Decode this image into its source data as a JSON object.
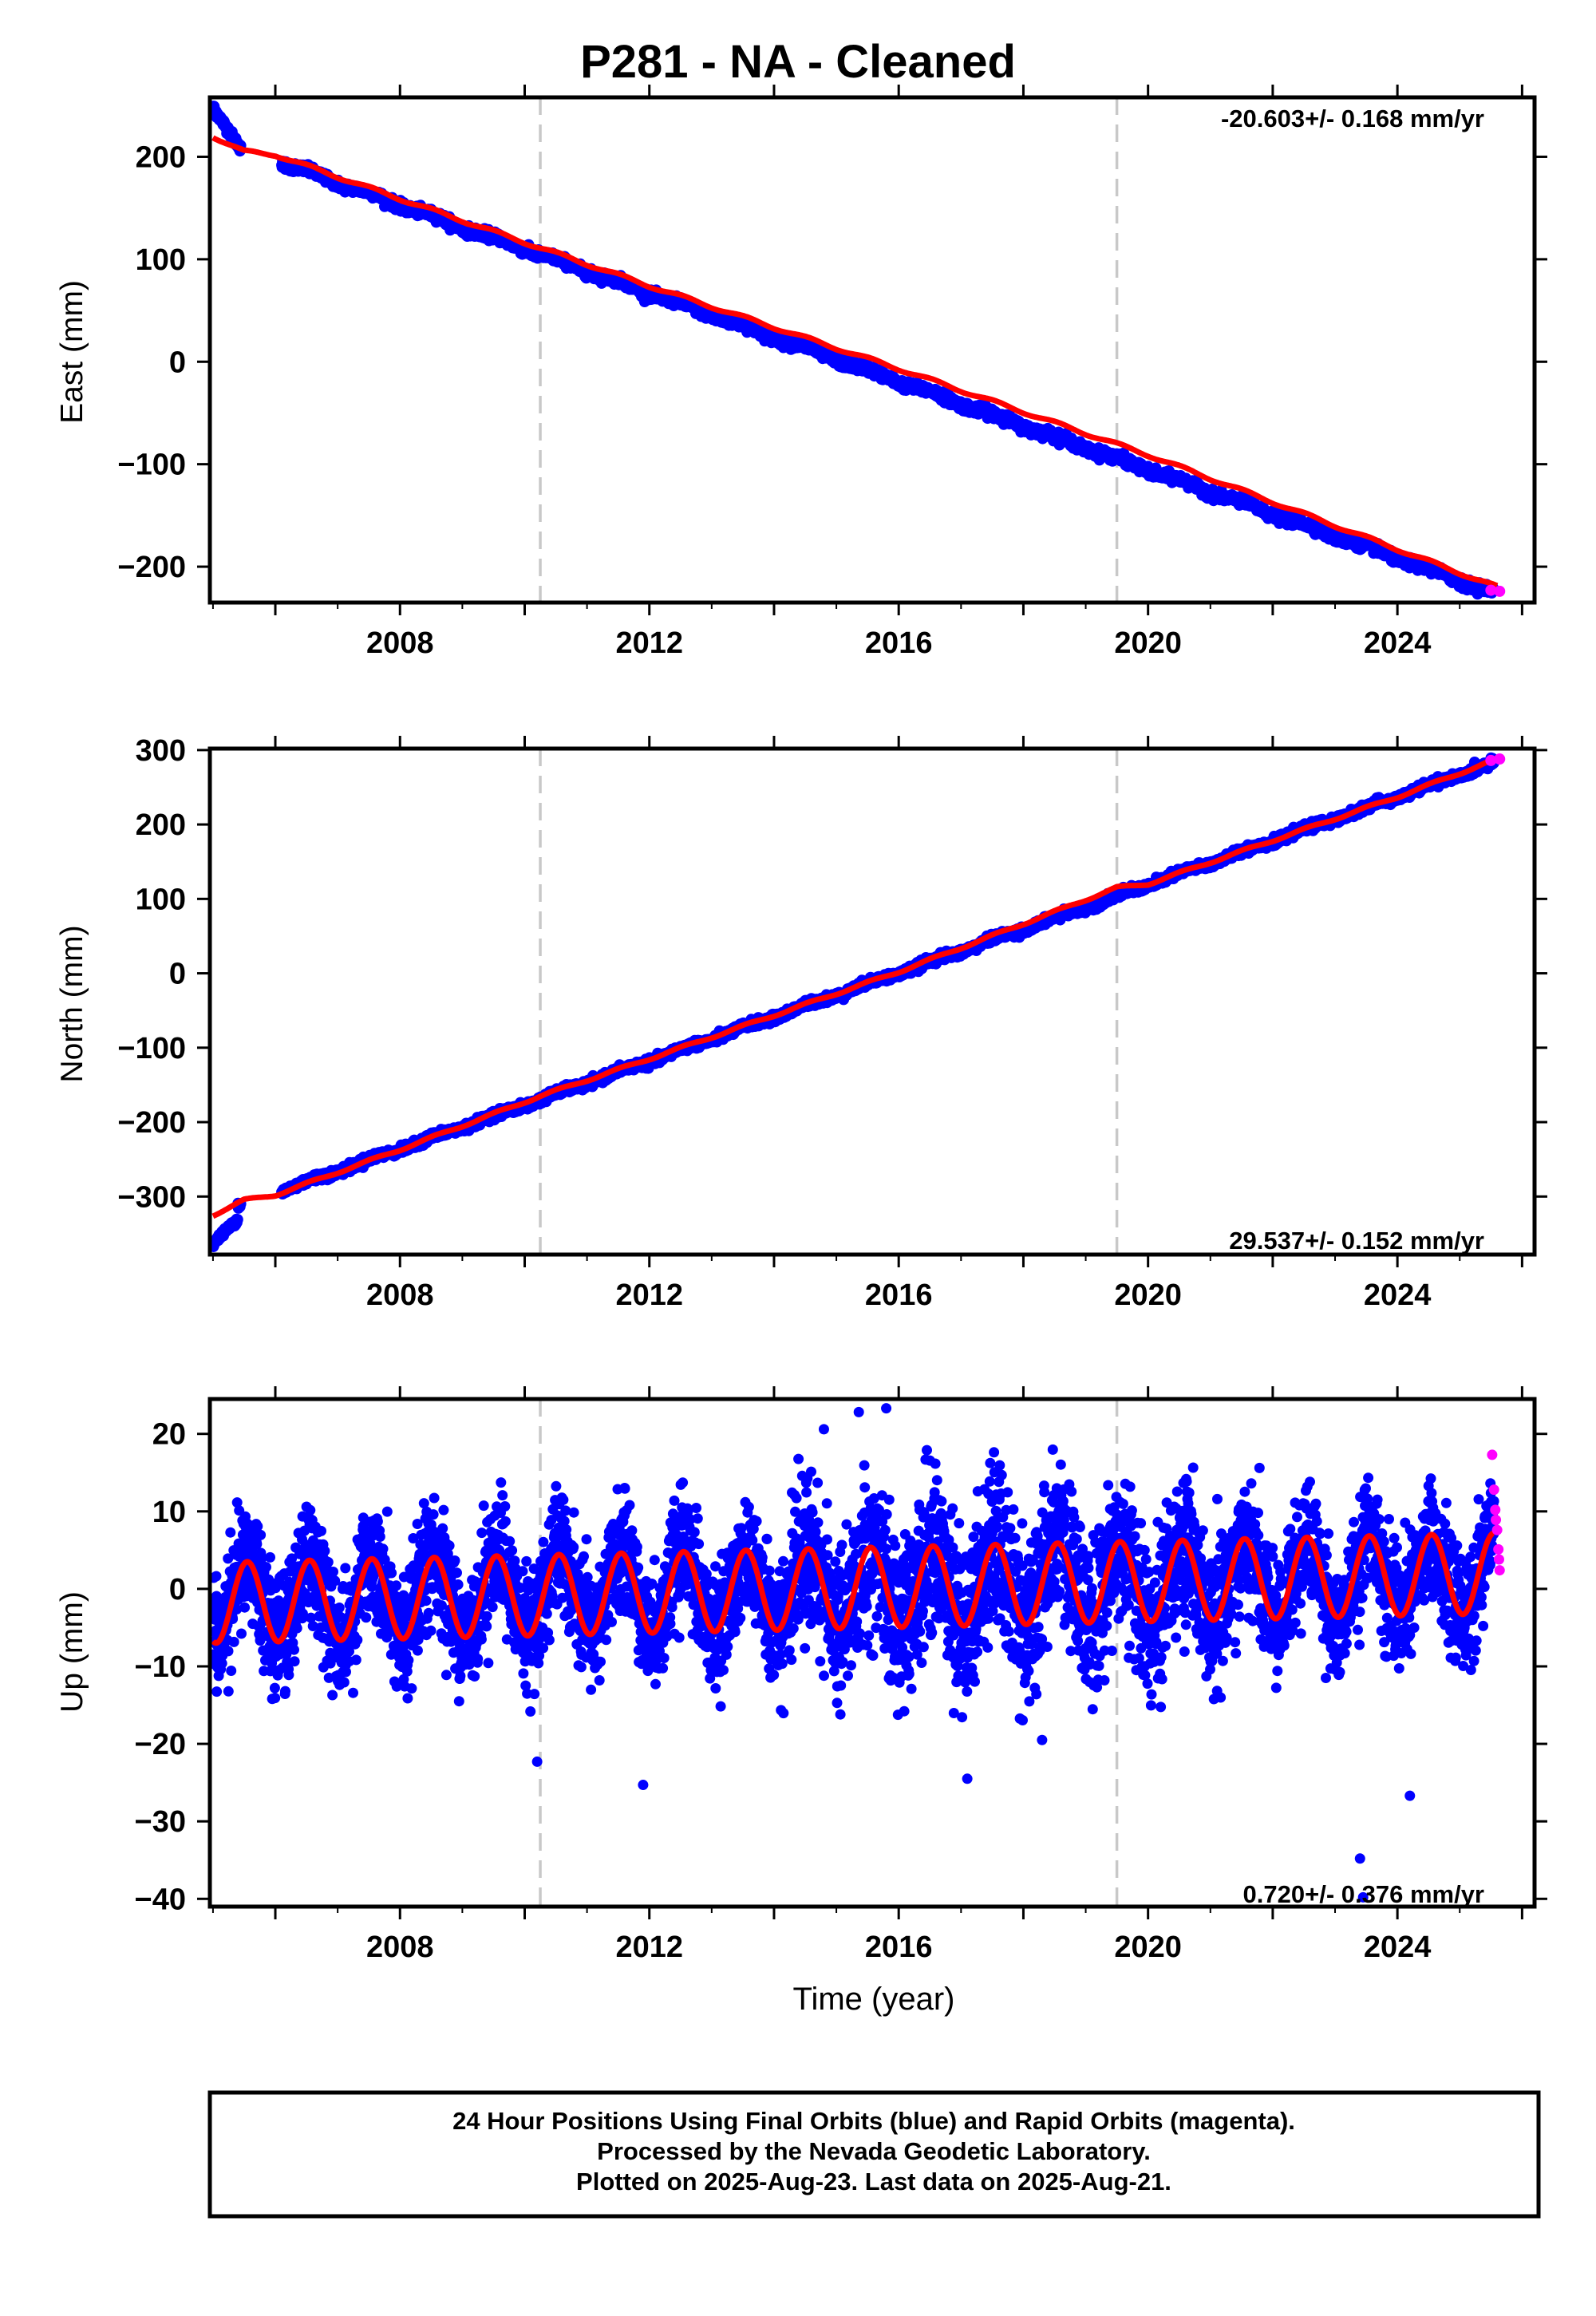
{
  "title": "P281  - NA - Cleaned",
  "footer": {
    "line1": "24 Hour Positions Using Final Orbits (blue) and Rapid Orbits (magenta).",
    "line2": "Processed by the Nevada Geodetic Laboratory.",
    "line3": "Plotted on 2025-Aug-23. Last data on 2025-Aug-21."
  },
  "colors": {
    "final_orbits": "#0000ff",
    "rapid_orbits": "#ff00ff",
    "model": "#ff0000",
    "event_lines": "#c8c8c8"
  },
  "chart_data": [
    {
      "type": "scatter",
      "id": "east",
      "ylabel": "East (mm)",
      "xlabel": "",
      "rate_label": "-20.603+/- 0.168 mm/yr",
      "xlim": [
        2004.95,
        2026.2
      ],
      "ylim": [
        -235,
        258
      ],
      "xticks": [
        2008,
        2012,
        2016,
        2020,
        2024
      ],
      "xtick_labels": [
        "2008",
        "2012",
        "2016",
        "2020",
        "2024"
      ],
      "yticks": [
        -200,
        -100,
        0,
        100,
        200
      ],
      "ytick_labels": [
        "−200",
        "−100",
        "0",
        "100",
        "200"
      ],
      "event_lines": [
        2010.25,
        2019.5
      ],
      "grid": false,
      "series": [
        {
          "name": "Final Orbits",
          "color": "#0000ff",
          "trend": {
            "start_year": 2005.0,
            "end_year": 2025.55,
            "y_start": 218.0,
            "y_end": -225.0
          },
          "annual_amplitude_mm": 1.8,
          "noise_mm": 2.2,
          "early_segment": {
            "x": [
              2005.0,
              2005.4
            ],
            "y": [
              248.0,
              212.0
            ]
          }
        },
        {
          "name": "Rapid Orbits",
          "color": "#ff00ff",
          "x": [
            2025.5,
            2025.64
          ],
          "y": [
            -223.0,
            -224.0
          ]
        },
        {
          "name": "Model",
          "color": "#ff0000",
          "x": [
            2005.0,
            2005.5,
            2006.0,
            2008.0,
            2012.0,
            2016.0,
            2020.0,
            2024.0,
            2025.6
          ],
          "y": [
            220.0,
            205.0,
            202.0,
            159.0,
            74.0,
            -7.0,
            -91.0,
            -183.0,
            -220.0
          ]
        }
      ]
    },
    {
      "type": "scatter",
      "id": "north",
      "ylabel": "North (mm)",
      "xlabel": "",
      "rate_label": "29.537+/- 0.152 mm/yr",
      "xlim": [
        2004.95,
        2026.2
      ],
      "ylim": [
        -378,
        302
      ],
      "xticks": [
        2008,
        2012,
        2016,
        2020,
        2024
      ],
      "xtick_labels": [
        "2008",
        "2012",
        "2016",
        "2020",
        "2024"
      ],
      "yticks": [
        -300,
        -200,
        -100,
        0,
        100,
        200,
        300
      ],
      "ytick_labels": [
        "−300",
        "−200",
        "−100",
        "0",
        "100",
        "200",
        "300"
      ],
      "event_lines": [
        2010.25,
        2019.5
      ],
      "grid": false,
      "series": [
        {
          "name": "Final Orbits",
          "color": "#0000ff",
          "trend": {
            "start_year": 2005.0,
            "end_year": 2025.55,
            "y_start": -325.0,
            "y_end": 283.0
          },
          "annual_amplitude_mm": 2.0,
          "noise_mm": 2.5,
          "early_segment": {
            "x": [
              2005.0,
              2005.4
            ],
            "y": [
              -363.0,
              -330.0
            ]
          }
        },
        {
          "name": "Rapid Orbits",
          "color": "#ff00ff",
          "x": [
            2025.5,
            2025.64
          ],
          "y": [
            286.0,
            288.0
          ]
        },
        {
          "name": "Model",
          "color": "#ff0000",
          "x": [
            2005.0,
            2005.5,
            2006.0,
            2008.0,
            2010.25,
            2012.0,
            2016.0,
            2019.5,
            2020.0,
            2024.0,
            2025.6
          ],
          "y": [
            -325.0,
            -305.0,
            -298.0,
            -237.0,
            -165.0,
            -115.0,
            2.0,
            115.0,
            120.0,
            237.0,
            288.0
          ]
        }
      ]
    },
    {
      "type": "scatter",
      "id": "up",
      "ylabel": "Up (mm)",
      "xlabel": "Time (year)",
      "rate_label": "0.720+/- 0.376 mm/yr",
      "xlim": [
        2004.95,
        2026.2
      ],
      "ylim": [
        -41,
        24.5
      ],
      "xticks": [
        2008,
        2012,
        2016,
        2020,
        2024
      ],
      "xtick_labels": [
        "2008",
        "2012",
        "2016",
        "2020",
        "2024"
      ],
      "yticks": [
        -40,
        -30,
        -20,
        -10,
        0,
        10,
        20
      ],
      "ytick_labels": [
        "−40",
        "−30",
        "−20",
        "−10",
        "0",
        "10",
        "20"
      ],
      "event_lines": [
        2010.25,
        2019.5
      ],
      "grid": false,
      "series": [
        {
          "name": "Final Orbits",
          "color": "#0000ff",
          "trend": {
            "start_year": 2005.0,
            "end_year": 2025.55,
            "y_start": -1.5,
            "y_end": 1.5
          },
          "annual_amplitude_mm": 5.2,
          "noise_mm": 3.6,
          "outliers": {
            "x": [
              2010.2,
              2011.9,
              2017.1,
              2018.3,
              2023.4,
              2023.45,
              2024.2,
              2015.8,
              2014.8,
              2005.95
            ],
            "y": [
              -22.3,
              -25.3,
              -24.5,
              -19.5,
              -34.8,
              -39.8,
              -26.7,
              23.3,
              20.6,
              -14.2
            ]
          }
        },
        {
          "name": "Rapid Orbits",
          "color": "#ff00ff",
          "x": [
            2025.52,
            2025.55,
            2025.57,
            2025.58,
            2025.6,
            2025.62,
            2025.63,
            2025.64
          ],
          "y": [
            17.3,
            12.8,
            10.2,
            8.9,
            7.6,
            5.1,
            3.8,
            2.4
          ]
        },
        {
          "name": "Model",
          "color": "#ff0000",
          "annual_amplitude_mm": 5.2,
          "trend": {
            "start_year": 2005.0,
            "end_year": 2025.55,
            "y_start": -1.8,
            "y_end": 2.0
          }
        }
      ]
    }
  ]
}
